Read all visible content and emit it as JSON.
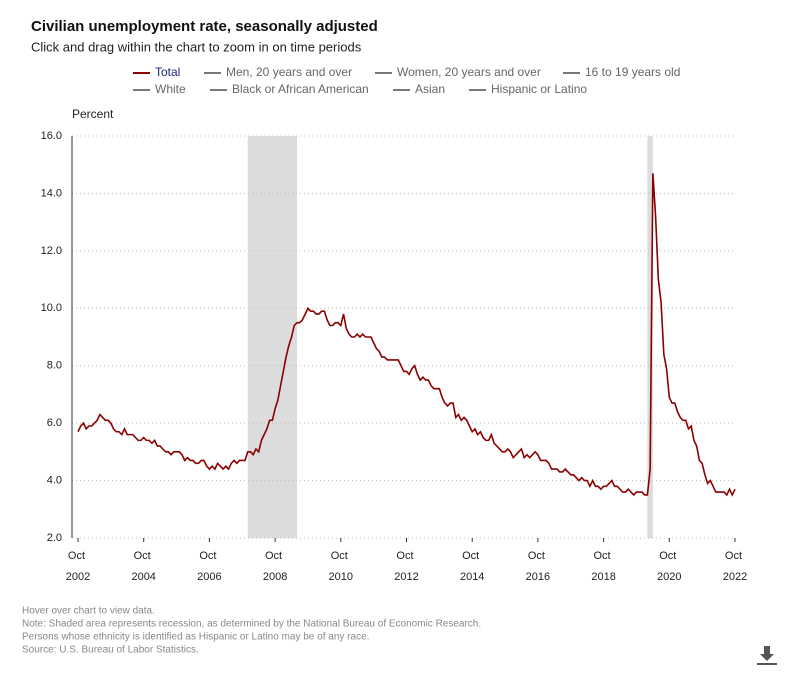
{
  "chart_data": {
    "type": "line",
    "title": "Civilian unemployment rate, seasonally adjusted",
    "subtitle": "Click and drag within the chart to zoom in on time periods",
    "y_label": "Percent",
    "x": [
      "2002-10",
      "2002-11",
      "2002-12",
      "2003-01",
      "2003-02",
      "2003-03",
      "2003-04",
      "2003-05",
      "2003-06",
      "2003-07",
      "2003-08",
      "2003-09",
      "2003-10",
      "2003-11",
      "2003-12",
      "2004-01",
      "2004-02",
      "2004-03",
      "2004-04",
      "2004-05",
      "2004-06",
      "2004-07",
      "2004-08",
      "2004-09",
      "2004-10",
      "2004-11",
      "2004-12",
      "2005-01",
      "2005-02",
      "2005-03",
      "2005-04",
      "2005-05",
      "2005-06",
      "2005-07",
      "2005-08",
      "2005-09",
      "2005-10",
      "2005-11",
      "2005-12",
      "2006-01",
      "2006-02",
      "2006-03",
      "2006-04",
      "2006-05",
      "2006-06",
      "2006-07",
      "2006-08",
      "2006-09",
      "2006-10",
      "2006-11",
      "2006-12",
      "2007-01",
      "2007-02",
      "2007-03",
      "2007-04",
      "2007-05",
      "2007-06",
      "2007-07",
      "2007-08",
      "2007-09",
      "2007-10",
      "2007-11",
      "2007-12",
      "2008-01",
      "2008-02",
      "2008-03",
      "2008-04",
      "2008-05",
      "2008-06",
      "2008-07",
      "2008-08",
      "2008-09",
      "2008-10",
      "2008-11",
      "2008-12",
      "2009-01",
      "2009-02",
      "2009-03",
      "2009-04",
      "2009-05",
      "2009-06",
      "2009-07",
      "2009-08",
      "2009-09",
      "2009-10",
      "2009-11",
      "2009-12",
      "2010-01",
      "2010-02",
      "2010-03",
      "2010-04",
      "2010-05",
      "2010-06",
      "2010-07",
      "2010-08",
      "2010-09",
      "2010-10",
      "2010-11",
      "2010-12",
      "2011-01",
      "2011-02",
      "2011-03",
      "2011-04",
      "2011-05",
      "2011-06",
      "2011-07",
      "2011-08",
      "2011-09",
      "2011-10",
      "2011-11",
      "2011-12",
      "2012-01",
      "2012-02",
      "2012-03",
      "2012-04",
      "2012-05",
      "2012-06",
      "2012-07",
      "2012-08",
      "2012-09",
      "2012-10",
      "2012-11",
      "2012-12",
      "2013-01",
      "2013-02",
      "2013-03",
      "2013-04",
      "2013-05",
      "2013-06",
      "2013-07",
      "2013-08",
      "2013-09",
      "2013-10",
      "2013-11",
      "2013-12",
      "2014-01",
      "2014-02",
      "2014-03",
      "2014-04",
      "2014-05",
      "2014-06",
      "2014-07",
      "2014-08",
      "2014-09",
      "2014-10",
      "2014-11",
      "2014-12",
      "2015-01",
      "2015-02",
      "2015-03",
      "2015-04",
      "2015-05",
      "2015-06",
      "2015-07",
      "2015-08",
      "2015-09",
      "2015-10",
      "2015-11",
      "2015-12",
      "2016-01",
      "2016-02",
      "2016-03",
      "2016-04",
      "2016-05",
      "2016-06",
      "2016-07",
      "2016-08",
      "2016-09",
      "2016-10",
      "2016-11",
      "2016-12",
      "2017-01",
      "2017-02",
      "2017-03",
      "2017-04",
      "2017-05",
      "2017-06",
      "2017-07",
      "2017-08",
      "2017-09",
      "2017-10",
      "2017-11",
      "2017-12",
      "2018-01",
      "2018-02",
      "2018-03",
      "2018-04",
      "2018-05",
      "2018-06",
      "2018-07",
      "2018-08",
      "2018-09",
      "2018-10",
      "2018-11",
      "2018-12",
      "2019-01",
      "2019-02",
      "2019-03",
      "2019-04",
      "2019-05",
      "2019-06",
      "2019-07",
      "2019-08",
      "2019-09",
      "2019-10",
      "2019-11",
      "2019-12",
      "2020-01",
      "2020-02",
      "2020-03",
      "2020-04",
      "2020-05",
      "2020-06",
      "2020-07",
      "2020-08",
      "2020-09",
      "2020-10",
      "2020-11",
      "2020-12",
      "2021-01",
      "2021-02",
      "2021-03",
      "2021-04",
      "2021-05",
      "2021-06",
      "2021-07",
      "2021-08",
      "2021-09",
      "2021-10",
      "2021-11",
      "2021-12",
      "2022-01",
      "2022-02",
      "2022-03",
      "2022-04",
      "2022-05",
      "2022-06",
      "2022-07",
      "2022-08",
      "2022-09",
      "2022-10"
    ],
    "series": [
      {
        "name": "Total",
        "color": "#8b0000",
        "values": [
          5.7,
          5.9,
          6.0,
          5.8,
          5.9,
          5.9,
          6.0,
          6.1,
          6.3,
          6.2,
          6.1,
          6.1,
          6.0,
          5.8,
          5.7,
          5.7,
          5.6,
          5.8,
          5.6,
          5.6,
          5.6,
          5.5,
          5.4,
          5.4,
          5.5,
          5.4,
          5.4,
          5.3,
          5.4,
          5.2,
          5.2,
          5.1,
          5.0,
          5.0,
          4.9,
          5.0,
          5.0,
          5.0,
          4.9,
          4.7,
          4.8,
          4.7,
          4.7,
          4.6,
          4.6,
          4.7,
          4.7,
          4.5,
          4.4,
          4.5,
          4.4,
          4.6,
          4.5,
          4.4,
          4.5,
          4.4,
          4.6,
          4.7,
          4.6,
          4.7,
          4.7,
          4.7,
          5.0,
          5.0,
          4.9,
          5.1,
          5.0,
          5.4,
          5.6,
          5.8,
          6.1,
          6.1,
          6.5,
          6.8,
          7.3,
          7.8,
          8.3,
          8.7,
          9.0,
          9.4,
          9.5,
          9.5,
          9.6,
          9.8,
          10.0,
          9.9,
          9.9,
          9.8,
          9.8,
          9.9,
          9.9,
          9.6,
          9.4,
          9.4,
          9.5,
          9.5,
          9.4,
          9.8,
          9.3,
          9.1,
          9.0,
          9.0,
          9.1,
          9.0,
          9.1,
          9.0,
          9.0,
          9.0,
          8.8,
          8.6,
          8.5,
          8.3,
          8.3,
          8.2,
          8.2,
          8.2,
          8.2,
          8.2,
          8.0,
          7.8,
          7.8,
          7.7,
          7.9,
          8.0,
          7.7,
          7.5,
          7.6,
          7.5,
          7.5,
          7.3,
          7.2,
          7.2,
          7.2,
          6.9,
          6.7,
          6.6,
          6.7,
          6.7,
          6.2,
          6.3,
          6.1,
          6.2,
          6.1,
          5.9,
          5.7,
          5.8,
          5.6,
          5.7,
          5.5,
          5.4,
          5.4,
          5.6,
          5.3,
          5.2,
          5.1,
          5.0,
          5.0,
          5.1,
          5.0,
          4.8,
          4.9,
          5.0,
          5.1,
          4.8,
          4.9,
          4.8,
          4.9,
          5.0,
          4.9,
          4.7,
          4.7,
          4.7,
          4.6,
          4.4,
          4.4,
          4.4,
          4.3,
          4.3,
          4.4,
          4.3,
          4.2,
          4.2,
          4.1,
          4.0,
          4.1,
          4.0,
          4.0,
          3.8,
          4.0,
          3.8,
          3.8,
          3.7,
          3.8,
          3.8,
          3.9,
          4.0,
          3.8,
          3.8,
          3.7,
          3.6,
          3.6,
          3.7,
          3.6,
          3.5,
          3.6,
          3.6,
          3.6,
          3.5,
          3.5,
          4.4,
          14.7,
          13.2,
          11.0,
          10.2,
          8.4,
          7.9,
          6.9,
          6.7,
          6.7,
          6.4,
          6.2,
          6.1,
          6.1,
          5.8,
          5.9,
          5.4,
          5.2,
          4.7,
          4.6,
          4.2,
          3.9,
          4.0,
          3.8,
          3.6,
          3.6,
          3.6,
          3.6,
          3.5,
          3.7,
          3.5,
          3.7
        ]
      }
    ],
    "other_legend_items": [
      "Men, 20 years and over",
      "Women, 20 years and over",
      "16 to 19 years old",
      "White",
      "Black or African American",
      "Asian",
      "Hispanic or Latino"
    ],
    "other_legend_color": "#777777",
    "recessions": [
      [
        "2007-12",
        "2009-06"
      ],
      [
        "2020-02",
        "2020-04"
      ]
    ],
    "recession_color": "#dcdcdc",
    "xlim": [
      "2002-10",
      "2022-10"
    ],
    "xticks": [
      {
        "value": "2002-10",
        "label": "Oct 2002"
      },
      {
        "value": "2004-10",
        "label": "Oct 2004"
      },
      {
        "value": "2006-10",
        "label": "Oct 2006"
      },
      {
        "value": "2008-10",
        "label": "Oct 2008"
      },
      {
        "value": "2010-10",
        "label": "Oct 2010"
      },
      {
        "value": "2012-10",
        "label": "Oct 2012"
      },
      {
        "value": "2014-10",
        "label": "Oct 2014"
      },
      {
        "value": "2016-10",
        "label": "Oct 2016"
      },
      {
        "value": "2018-10",
        "label": "Oct 2018"
      },
      {
        "value": "2020-10",
        "label": "Oct 2020"
      },
      {
        "value": "2022-10",
        "label": "Oct 2022"
      }
    ],
    "ylim": [
      2,
      16
    ],
    "yticks": [
      {
        "value": 2,
        "label": "2.0"
      },
      {
        "value": 4,
        "label": "4.0"
      },
      {
        "value": 6,
        "label": "6.0"
      },
      {
        "value": 8,
        "label": "8.0"
      },
      {
        "value": 10,
        "label": "10.0"
      },
      {
        "value": 12,
        "label": "12.0"
      },
      {
        "value": 14,
        "label": "14.0"
      },
      {
        "value": 16,
        "label": "16.0"
      }
    ],
    "grid": true,
    "notes": [
      "Hover over chart to view data.",
      "Note: Shaded area represents recession, as determined by the National Bureau of Economic Research.",
      "Persons whose ethnicity is identified as Hispanic or Latino may be of any race.",
      "Source: U.S. Bureau of Labor Statistics."
    ]
  }
}
